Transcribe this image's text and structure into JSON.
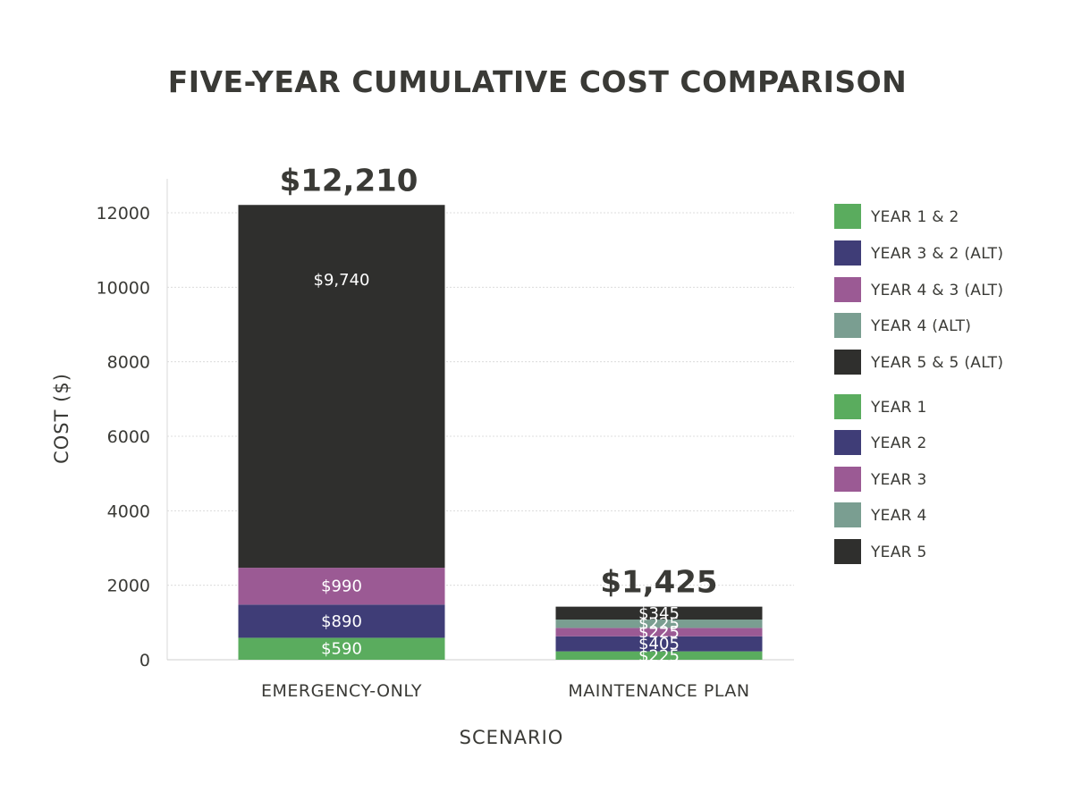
{
  "chart_data": {
    "type": "bar",
    "stacked": true,
    "title": "FIVE-YEAR CUMULATIVE COST COMPARISON",
    "xlabel": "SCENARIO",
    "ylabel": "COST ($)",
    "ylim": [
      0,
      13000
    ],
    "yticks": [
      "0",
      "2000",
      "4000",
      "6000",
      "8000",
      "10000",
      "12000"
    ],
    "ytick_values": [
      0,
      2000,
      4000,
      6000,
      8000,
      10000,
      12000
    ],
    "grid": true,
    "legend_position": "right",
    "categories": [
      "EMERGENCY-ONLY",
      "MAINTENANCE PLAN"
    ],
    "totals": [
      "$12,210",
      "$1,425"
    ],
    "total_values": [
      12210,
      1425
    ],
    "stacks": [
      {
        "category": "EMERGENCY-ONLY",
        "segments": [
          {
            "value": 590,
            "label": "$590",
            "color": "#5aac5e"
          },
          {
            "value": 890,
            "label": "$890",
            "color": "#3f3d77"
          },
          {
            "value": 990,
            "label": "$990",
            "color": "#9b5a94"
          },
          {
            "value": 9740,
            "label": "$9,740",
            "color": "#2f2f2d"
          }
        ]
      },
      {
        "category": "MAINTENANCE PLAN",
        "segments": [
          {
            "value": 225,
            "label": "$225",
            "color": "#5aac5e"
          },
          {
            "value": 405,
            "label": "$405",
            "color": "#3f3d77"
          },
          {
            "value": 225,
            "label": "$225",
            "color": "#9b5a94"
          },
          {
            "value": 225,
            "label": "$225",
            "color": "#7a9e91"
          },
          {
            "value": 345,
            "label": "$345",
            "color": "#2f2f2d"
          }
        ]
      }
    ],
    "legend": [
      {
        "label": "YEAR 1 & 2",
        "color": "#5aac5e"
      },
      {
        "label": "YEAR 3 & 2 (ALT)",
        "color": "#3f3d77"
      },
      {
        "label": "YEAR 4 & 3 (ALT)",
        "color": "#9b5a94"
      },
      {
        "label": "YEAR 4 (ALT)",
        "color": "#7a9e91"
      },
      {
        "label": "YEAR 5 & 5 (ALT)",
        "color": "#2f2f2d"
      },
      {
        "label": "YEAR 1",
        "color": "#5aac5e"
      },
      {
        "label": "YEAR 2",
        "color": "#3f3d77"
      },
      {
        "label": "YEAR 3",
        "color": "#9b5a94"
      },
      {
        "label": "YEAR 4",
        "color": "#7a9e91"
      },
      {
        "label": "YEAR 5",
        "color": "#2f2f2d"
      }
    ]
  }
}
